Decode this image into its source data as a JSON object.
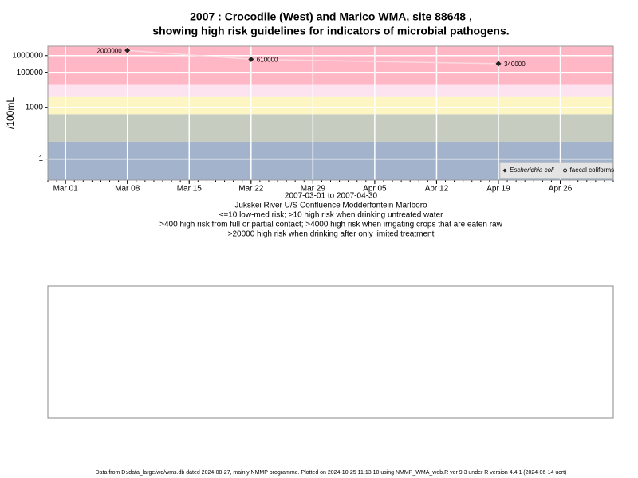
{
  "chart_data": {
    "type": "line",
    "title": "2007 : Crocodile (West) and Marico WMA, site 88648 ,",
    "subtitle": "showing high risk guidelines for indicators of microbial pathogens.",
    "ylabel": "/100mL",
    "xlabel": "2007-03-01 to 2007-04-30",
    "notes": [
      "Jukskei River U/S Confluence Modderfontein Marlboro",
      "<=10 low-med risk; >10 high risk when drinking untreated water",
      ">400 high risk from full or partial contact; >4000 high risk when irrigating crops that are eaten raw",
      ">20000 high risk when drinking after only limited treatment"
    ],
    "log_y": true,
    "grid": true,
    "grid_color": "#ffffff",
    "thresholds": [
      10,
      400,
      4000,
      20000
    ],
    "band_colors": [
      "#a3b3cc",
      "#c6ccbf",
      "#fdf6c3",
      "#fde2f0",
      "#ffb7c5"
    ],
    "line_color": "#fbd9df",
    "x": [
      "2007-03-08",
      "2007-03-22",
      "2007-04-19"
    ],
    "series": [
      {
        "name": "Escherichia coli",
        "color": "#222222",
        "marker": "diamond",
        "values": [
          2000000,
          610000,
          340000
        ]
      },
      {
        "name": "faecal coliforms",
        "color": "#222222",
        "marker": "open-circle",
        "values": [
          null,
          null,
          null
        ]
      }
    ],
    "xlim": [
      "2007-02-27",
      "2007-05-02"
    ],
    "xticks": [
      {
        "value": "2007-03-01",
        "label": "Mar 01"
      },
      {
        "value": "2007-03-08",
        "label": "Mar 08"
      },
      {
        "value": "2007-03-15",
        "label": "Mar 15"
      },
      {
        "value": "2007-03-22",
        "label": "Mar 22"
      },
      {
        "value": "2007-03-29",
        "label": "Mar 29"
      },
      {
        "value": "2007-04-05",
        "label": "Apr 05"
      },
      {
        "value": "2007-04-12",
        "label": "Apr 12"
      },
      {
        "value": "2007-04-19",
        "label": "Apr 19"
      },
      {
        "value": "2007-04-26",
        "label": "Apr 26"
      }
    ],
    "ylim": [
      0.06,
      3500000
    ],
    "yticks": [
      1,
      1000,
      100000,
      1000000
    ],
    "legend": "bottom-right",
    "footer": "Data from D:/data_large/wq/wms.db dated 2024-08-27, mainly NMMP programme. Plotted on 2024-10-25 11:13:10 using NMMP_WMA_web.R ver 9.3 under R version 4.4.1 (2024-06-14 ucrt)"
  }
}
